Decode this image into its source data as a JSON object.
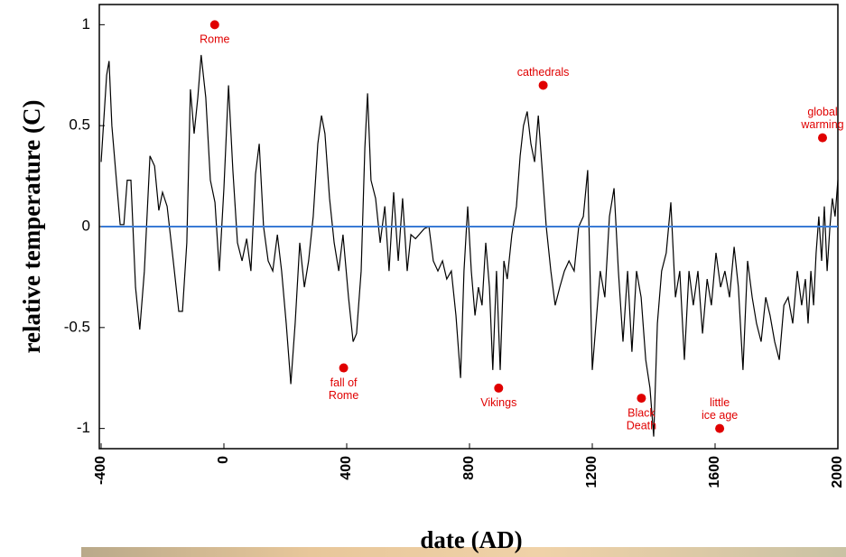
{
  "chart_data": {
    "type": "line",
    "xlabel": "date (AD)",
    "ylabel": "relative temperature (C)",
    "xlim": [
      -400,
      2000
    ],
    "ylim": [
      -1.1,
      1.1
    ],
    "xticks": [
      -400,
      0,
      400,
      800,
      1200,
      1600,
      2000
    ],
    "yticks": [
      1,
      0.5,
      0,
      -0.5,
      -1
    ],
    "color": "#000000",
    "reference_line": {
      "value": 0,
      "color": "#3a7bd5"
    },
    "x": [
      -400,
      -382,
      -374,
      -365,
      -353,
      -338,
      -326,
      -315,
      -303,
      -288,
      -274,
      -259,
      -241,
      -226,
      -212,
      -200,
      -185,
      -165,
      -147,
      -135,
      -121,
      -109,
      -97,
      -85,
      -74,
      -59,
      -44,
      -29,
      -15,
      0,
      15,
      29,
      44,
      59,
      74,
      88,
      103,
      115,
      129,
      144,
      159,
      174,
      188,
      203,
      218,
      232,
      247,
      262,
      276,
      291,
      306,
      318,
      329,
      344,
      359,
      374,
      388,
      406,
      421,
      432,
      447,
      459,
      468,
      479,
      494,
      509,
      524,
      538,
      553,
      568,
      582,
      597,
      609,
      624,
      653,
      668,
      682,
      697,
      712,
      726,
      741,
      756,
      771,
      782,
      794,
      806,
      818,
      829,
      841,
      853,
      865,
      876,
      888,
      900,
      912,
      923,
      938,
      953,
      965,
      976,
      988,
      1000,
      1012,
      1024,
      1035,
      1050,
      1065,
      1079,
      1094,
      1109,
      1124,
      1141,
      1156,
      1171,
      1185,
      1200,
      1212,
      1226,
      1241,
      1256,
      1271,
      1285,
      1300,
      1315,
      1329,
      1344,
      1359,
      1374,
      1388,
      1400,
      1412,
      1426,
      1441,
      1456,
      1471,
      1485,
      1500,
      1515,
      1529,
      1544,
      1559,
      1574,
      1588,
      1603,
      1618,
      1632,
      1647,
      1662,
      1676,
      1691,
      1706,
      1721,
      1735,
      1750,
      1765,
      1779,
      1794,
      1809,
      1824,
      1838,
      1853,
      1868,
      1882,
      1894,
      1903,
      1912,
      1921,
      1929,
      1938,
      1947,
      1956,
      1965,
      1974,
      1982,
      1991,
      2000
    ],
    "values": [
      0.32,
      0.75,
      0.82,
      0.5,
      0.28,
      0.01,
      0.01,
      0.23,
      0.23,
      -0.3,
      -0.51,
      -0.22,
      0.35,
      0.3,
      0.08,
      0.17,
      0.1,
      -0.17,
      -0.42,
      -0.42,
      -0.08,
      0.68,
      0.46,
      0.64,
      0.85,
      0.64,
      0.23,
      0.12,
      -0.22,
      0.19,
      0.7,
      0.28,
      -0.08,
      -0.17,
      -0.06,
      -0.22,
      0.26,
      0.41,
      0,
      -0.17,
      -0.22,
      -0.04,
      -0.22,
      -0.48,
      -0.78,
      -0.48,
      -0.08,
      -0.3,
      -0.17,
      0.05,
      0.41,
      0.55,
      0.46,
      0.14,
      -0.08,
      -0.22,
      -0.04,
      -0.35,
      -0.57,
      -0.53,
      -0.22,
      0.39,
      0.66,
      0.23,
      0.14,
      -0.08,
      0.1,
      -0.22,
      0.17,
      -0.17,
      0.14,
      -0.22,
      -0.04,
      -0.06,
      -0.01,
      0,
      -0.17,
      -0.22,
      -0.17,
      -0.26,
      -0.22,
      -0.44,
      -0.75,
      -0.22,
      0.1,
      -0.22,
      -0.44,
      -0.3,
      -0.39,
      -0.08,
      -0.3,
      -0.71,
      -0.22,
      -0.71,
      -0.17,
      -0.26,
      -0.04,
      0.1,
      0.35,
      0.5,
      0.57,
      0.41,
      0.32,
      0.55,
      0.32,
      0,
      -0.22,
      -0.39,
      -0.3,
      -0.22,
      -0.17,
      -0.22,
      0,
      0.05,
      0.28,
      -0.71,
      -0.48,
      -0.22,
      -0.35,
      0.05,
      0.19,
      -0.22,
      -0.57,
      -0.22,
      -0.62,
      -0.22,
      -0.35,
      -0.66,
      -0.8,
      -1.04,
      -0.48,
      -0.22,
      -0.13,
      0.12,
      -0.35,
      -0.22,
      -0.66,
      -0.22,
      -0.39,
      -0.22,
      -0.53,
      -0.26,
      -0.39,
      -0.13,
      -0.3,
      -0.22,
      -0.35,
      -0.1,
      -0.3,
      -0.71,
      -0.17,
      -0.35,
      -0.48,
      -0.57,
      -0.35,
      -0.44,
      -0.57,
      -0.66,
      -0.39,
      -0.35,
      -0.48,
      -0.22,
      -0.39,
      -0.26,
      -0.48,
      -0.22,
      -0.39,
      -0.13,
      0.05,
      -0.17,
      0.1,
      -0.22,
      0,
      0.14,
      0.05,
      0.23
    ],
    "annotations": [
      {
        "x": -30,
        "y": 1.0,
        "label": [
          "Rome"
        ],
        "position": "below",
        "color": "#e00000"
      },
      {
        "x": 390,
        "y": -0.7,
        "label": [
          "fall of",
          "Rome"
        ],
        "position": "below",
        "color": "#e00000"
      },
      {
        "x": 895,
        "y": -0.8,
        "label": [
          "Vikings"
        ],
        "position": "below",
        "color": "#e00000"
      },
      {
        "x": 1040,
        "y": 0.7,
        "label": [
          "cathedrals"
        ],
        "position": "above",
        "color": "#e00000"
      },
      {
        "x": 1360,
        "y": -0.85,
        "label": [
          "Black",
          "Death"
        ],
        "position": "below",
        "color": "#e00000"
      },
      {
        "x": 1615,
        "y": -1.0,
        "label": [
          "little",
          "ice age"
        ],
        "position": "above",
        "color": "#e00000"
      },
      {
        "x": 1950,
        "y": 0.44,
        "label": [
          "global",
          "warming"
        ],
        "position": "above",
        "color": "#e00000"
      }
    ]
  }
}
